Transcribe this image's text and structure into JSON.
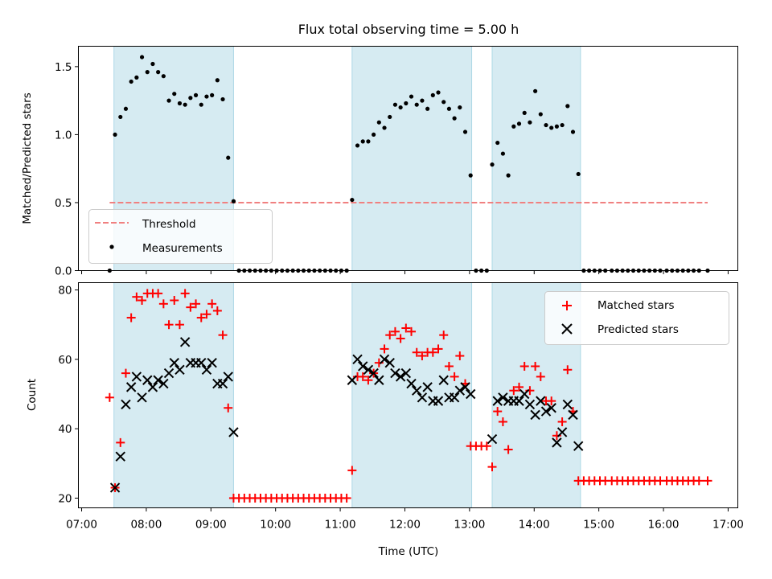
{
  "chart_data": [
    {
      "type": "scatter",
      "title": "Flux total observing time = 5.00 h",
      "xlabel": "",
      "ylabel": "Matched/Predicted stars",
      "xlim": [
        "06:57",
        "17:09"
      ],
      "ylim": [
        0,
        1.65
      ],
      "yticks": [
        0.0,
        0.5,
        1.0,
        1.5
      ],
      "ytick_labels": [
        "0.0",
        "0.5",
        "1.0",
        "1.5"
      ],
      "xticks": [
        "07:00",
        "08:00",
        "09:00",
        "10:00",
        "11:00",
        "12:00",
        "13:00",
        "14:00",
        "15:00",
        "16:00",
        "17:00"
      ],
      "shaded_spans": [
        [
          "07:30",
          "09:21"
        ],
        [
          "11:11",
          "13:02"
        ],
        [
          "13:21",
          "14:43"
        ]
      ],
      "shade_color": "#add8e6",
      "threshold": {
        "label": "Threshold",
        "value": 0.5,
        "x_range": [
          "07:26",
          "16:41"
        ],
        "color": "#f08080"
      },
      "legend": {
        "placement": "lower-left",
        "entries": [
          "Threshold",
          "Measurements"
        ]
      },
      "series": [
        {
          "name": "Measurements",
          "color": "#000000",
          "marker": "dot",
          "x": [
            "07:26",
            "07:31",
            "07:36",
            "07:41",
            "07:46",
            "07:51",
            "07:56",
            "08:01",
            "08:06",
            "08:11",
            "08:16",
            "08:21",
            "08:26",
            "08:31",
            "08:36",
            "08:41",
            "08:46",
            "08:51",
            "08:56",
            "09:01",
            "09:06",
            "09:11",
            "09:16",
            "09:21",
            "09:26",
            "09:31",
            "09:36",
            "09:41",
            "09:46",
            "09:51",
            "09:56",
            "10:01",
            "10:06",
            "10:11",
            "10:16",
            "10:21",
            "10:26",
            "10:31",
            "10:36",
            "10:41",
            "10:46",
            "10:51",
            "10:56",
            "11:01",
            "11:06",
            "11:11",
            "11:16",
            "11:21",
            "11:26",
            "11:31",
            "11:36",
            "11:41",
            "11:46",
            "11:51",
            "11:56",
            "12:01",
            "12:06",
            "12:11",
            "12:16",
            "12:21",
            "12:26",
            "12:31",
            "12:36",
            "12:41",
            "12:46",
            "12:51",
            "12:56",
            "13:01",
            "13:06",
            "13:11",
            "13:16",
            "13:21",
            "13:26",
            "13:31",
            "13:36",
            "13:41",
            "13:46",
            "13:51",
            "13:56",
            "14:01",
            "14:06",
            "14:11",
            "14:16",
            "14:21",
            "14:26",
            "14:31",
            "14:36",
            "14:41",
            "14:46",
            "14:51",
            "14:56",
            "15:01",
            "15:06",
            "15:12",
            "15:17",
            "15:22",
            "15:27",
            "15:32",
            "15:37",
            "15:42",
            "15:47",
            "15:52",
            "15:57",
            "16:03",
            "16:08",
            "16:13",
            "16:18",
            "16:23",
            "16:28",
            "16:33",
            "16:41"
          ],
          "y": [
            0.0,
            1.0,
            1.13,
            1.19,
            1.39,
            1.42,
            1.57,
            1.46,
            1.52,
            1.46,
            1.43,
            1.25,
            1.3,
            1.23,
            1.22,
            1.27,
            1.29,
            1.22,
            1.28,
            1.29,
            1.4,
            1.26,
            0.83,
            0.51,
            0,
            0,
            0,
            0,
            0,
            0,
            0,
            0,
            0,
            0,
            0,
            0,
            0,
            0,
            0,
            0,
            0,
            0,
            0,
            0,
            0,
            0.52,
            0.92,
            0.95,
            0.95,
            1.0,
            1.09,
            1.05,
            1.13,
            1.22,
            1.2,
            1.23,
            1.28,
            1.22,
            1.25,
            1.19,
            1.29,
            1.31,
            1.24,
            1.19,
            1.12,
            1.2,
            1.02,
            0.7,
            0,
            0,
            0,
            0.78,
            0.94,
            0.86,
            0.7,
            1.06,
            1.08,
            1.16,
            1.09,
            1.32,
            1.15,
            1.07,
            1.05,
            1.06,
            1.07,
            1.21,
            1.02,
            0.71,
            0,
            0,
            0,
            0,
            0,
            0,
            0,
            0,
            0,
            0,
            0,
            0,
            0,
            0,
            0,
            0,
            0,
            0,
            0,
            0,
            0,
            0,
            0
          ]
        }
      ]
    },
    {
      "type": "scatter",
      "title": "",
      "xlabel": "Time (UTC)",
      "ylabel": "Count",
      "xlim": [
        "06:57",
        "17:09"
      ],
      "ylim": [
        17.2,
        82.1
      ],
      "yticks": [
        20,
        40,
        60,
        80
      ],
      "ytick_labels": [
        "20",
        "40",
        "60",
        "80"
      ],
      "xticks": [
        "07:00",
        "08:00",
        "09:00",
        "10:00",
        "11:00",
        "12:00",
        "13:00",
        "14:00",
        "15:00",
        "16:00",
        "17:00"
      ],
      "xtick_labels": [
        "07:00",
        "08:00",
        "09:00",
        "10:00",
        "11:00",
        "12:00",
        "13:00",
        "14:00",
        "15:00",
        "16:00",
        "17:00"
      ],
      "shaded_spans": [
        [
          "07:30",
          "09:21"
        ],
        [
          "11:11",
          "13:02"
        ],
        [
          "13:21",
          "14:43"
        ]
      ],
      "shade_color": "#add8e6",
      "legend": {
        "placement": "upper-right",
        "entries": [
          "Matched stars",
          "Predicted stars"
        ]
      },
      "series": [
        {
          "name": "Matched stars",
          "color": "#ff0000",
          "marker": "plus",
          "x": [
            "07:26",
            "07:31",
            "07:36",
            "07:41",
            "07:46",
            "07:51",
            "07:56",
            "08:01",
            "08:06",
            "08:11",
            "08:16",
            "08:21",
            "08:26",
            "08:31",
            "08:36",
            "08:41",
            "08:46",
            "08:51",
            "08:56",
            "09:01",
            "09:06",
            "09:11",
            "09:16",
            "09:21",
            "09:26",
            "09:31",
            "09:36",
            "09:41",
            "09:46",
            "09:51",
            "09:56",
            "10:01",
            "10:06",
            "10:11",
            "10:16",
            "10:21",
            "10:26",
            "10:31",
            "10:36",
            "10:41",
            "10:46",
            "10:51",
            "10:56",
            "11:01",
            "11:06",
            "11:11",
            "11:16",
            "11:21",
            "11:26",
            "11:31",
            "11:36",
            "11:41",
            "11:46",
            "11:51",
            "11:56",
            "12:01",
            "12:06",
            "12:11",
            "12:16",
            "12:21",
            "12:26",
            "12:31",
            "12:36",
            "12:41",
            "12:46",
            "12:51",
            "12:56",
            "13:01",
            "13:06",
            "13:11",
            "13:16",
            "13:21",
            "13:26",
            "13:31",
            "13:36",
            "13:41",
            "13:46",
            "13:51",
            "13:56",
            "14:01",
            "14:06",
            "14:11",
            "14:16",
            "14:21",
            "14:26",
            "14:31",
            "14:36",
            "14:41",
            "14:46",
            "14:51",
            "14:56",
            "15:01",
            "15:06",
            "15:12",
            "15:17",
            "15:22",
            "15:27",
            "15:32",
            "15:37",
            "15:42",
            "15:47",
            "15:52",
            "15:57",
            "16:03",
            "16:08",
            "16:13",
            "16:18",
            "16:23",
            "16:28",
            "16:33",
            "16:41"
          ],
          "y": [
            49,
            23,
            36,
            56,
            72,
            78,
            77,
            79,
            79,
            79,
            76,
            70,
            77,
            70,
            79,
            75,
            76,
            72,
            73,
            76,
            74,
            67,
            46,
            20,
            20,
            20,
            20,
            20,
            20,
            20,
            20,
            20,
            20,
            20,
            20,
            20,
            20,
            20,
            20,
            20,
            20,
            20,
            20,
            20,
            20,
            28,
            55,
            55,
            54,
            56,
            59,
            63,
            67,
            68,
            66,
            69,
            68,
            62,
            61,
            62,
            62,
            63,
            67,
            58,
            55,
            61,
            53,
            35,
            35,
            35,
            35,
            29,
            45,
            42,
            34,
            51,
            52,
            58,
            51,
            58,
            55,
            48,
            48,
            38,
            42,
            57,
            45,
            25,
            25,
            25,
            25,
            25,
            25,
            25,
            25,
            25,
            25,
            25,
            25,
            25,
            25,
            25,
            25,
            25,
            25,
            25,
            25,
            25,
            25,
            25,
            25
          ]
        },
        {
          "name": "Predicted stars",
          "color": "#000000",
          "marker": "x",
          "x": [
            "07:31",
            "07:36",
            "07:41",
            "07:46",
            "07:51",
            "07:56",
            "08:01",
            "08:06",
            "08:11",
            "08:16",
            "08:21",
            "08:26",
            "08:31",
            "08:36",
            "08:41",
            "08:46",
            "08:51",
            "08:56",
            "09:01",
            "09:06",
            "09:11",
            "09:16",
            "09:21",
            "11:11",
            "11:16",
            "11:21",
            "11:26",
            "11:31",
            "11:36",
            "11:41",
            "11:46",
            "11:51",
            "11:56",
            "12:01",
            "12:06",
            "12:11",
            "12:16",
            "12:21",
            "12:26",
            "12:31",
            "12:36",
            "12:41",
            "12:46",
            "12:51",
            "12:56",
            "13:01",
            "13:21",
            "13:26",
            "13:31",
            "13:36",
            "13:41",
            "13:46",
            "13:51",
            "13:56",
            "14:01",
            "14:06",
            "14:11",
            "14:16",
            "14:21",
            "14:26",
            "14:31",
            "14:36",
            "14:41"
          ],
          "y": [
            23,
            32,
            47,
            52,
            55,
            49,
            54,
            52,
            54,
            53,
            56,
            59,
            57,
            65,
            59,
            59,
            59,
            57,
            59,
            53,
            53,
            55,
            39,
            54,
            60,
            58,
            57,
            56,
            54,
            60,
            59,
            56,
            55,
            56,
            53,
            51,
            49,
            52,
            48,
            48,
            54,
            49,
            49,
            51,
            52,
            50,
            37,
            48,
            49,
            48,
            48,
            48,
            50,
            47,
            44,
            48,
            45,
            46,
            36,
            39,
            47,
            44,
            35
          ]
        }
      ]
    }
  ]
}
